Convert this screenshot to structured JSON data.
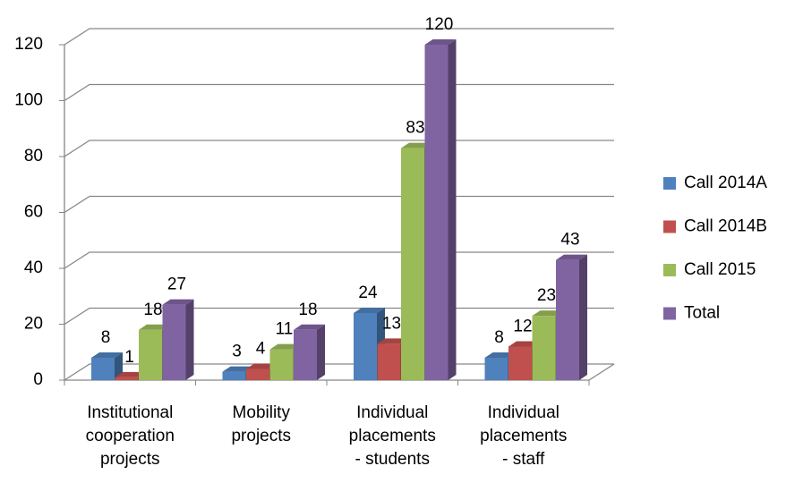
{
  "chart_data": {
    "type": "bar3d",
    "categories": [
      [
        "Institutional",
        "cooperation",
        "projects"
      ],
      [
        "Mobility",
        "projects"
      ],
      [
        "Individual",
        "placements",
        "- students"
      ],
      [
        "Individual",
        "placements",
        "- staff"
      ]
    ],
    "series": [
      {
        "name": "Call 2014A",
        "color": "#4f81bd",
        "values": [
          8,
          3,
          24,
          8
        ]
      },
      {
        "name": "Call 2014B",
        "color": "#c0504d",
        "values": [
          1,
          4,
          13,
          12
        ]
      },
      {
        "name": "Call 2015",
        "color": "#9bbb59",
        "values": [
          18,
          11,
          83,
          23
        ]
      },
      {
        "name": "Total",
        "color": "#8064a2",
        "values": [
          27,
          18,
          120,
          43
        ]
      }
    ],
    "ylim": [
      0,
      120
    ],
    "yticks": [
      0,
      20,
      40,
      60,
      80,
      100,
      120
    ],
    "grid": true,
    "legend": "right"
  }
}
